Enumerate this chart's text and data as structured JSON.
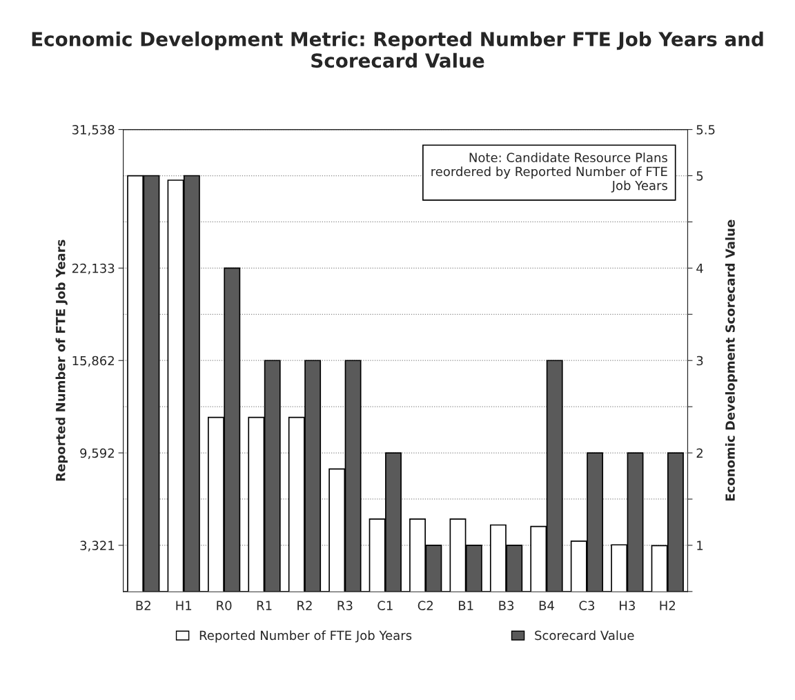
{
  "chart_data": {
    "type": "bar",
    "title": "Economic Development Metric: Reported Number FTE Job Years and Scorecard Value",
    "categories": [
      "B2",
      "H1",
      "R0",
      "R1",
      "R2",
      "R3",
      "C1",
      "C2",
      "B1",
      "B3",
      "B4",
      "C3",
      "H3",
      "H2"
    ],
    "series": [
      {
        "name": "Reported Number of FTE Job Years",
        "color": "#ffffff",
        "values": [
          28400,
          28100,
          12000,
          12000,
          12000,
          8500,
          5100,
          5100,
          5100,
          4700,
          4600,
          3600,
          3350,
          3300
        ]
      },
      {
        "name": "Scorecard Value",
        "color": "#5a5a5a",
        "axis": "y2",
        "values": [
          5,
          5,
          4,
          3,
          3,
          3,
          2,
          1,
          1,
          1,
          3,
          2,
          2,
          2
        ]
      }
    ],
    "ylabel": "Reported Number of FTE Job Years",
    "y2label": "Economic Development Scorecard Value",
    "ylim": [
      186,
      31538
    ],
    "yticks": [
      {
        "value": 3321,
        "label": "3,321"
      },
      {
        "value": 9592,
        "label": "9,592"
      },
      {
        "value": 15862,
        "label": "15,862"
      },
      {
        "value": 22133,
        "label": "22,133"
      },
      {
        "value": 31538,
        "label": "31,538"
      }
    ],
    "y2lim": [
      0.5,
      5.5
    ],
    "y2ticks": [
      {
        "value": 0.5,
        "label": null
      },
      1,
      {
        "value": 1.5,
        "label": null
      },
      2,
      {
        "value": 2.5,
        "label": null
      },
      3,
      {
        "value": 3.5,
        "label": null
      },
      4,
      {
        "value": 4.5,
        "label": null
      },
      5,
      5.5
    ],
    "grid": "y2",
    "legend": "bottom",
    "annotations": [
      "Note: Candidate Resource Plans reordered by Reported Number of FTE Job Years"
    ]
  }
}
